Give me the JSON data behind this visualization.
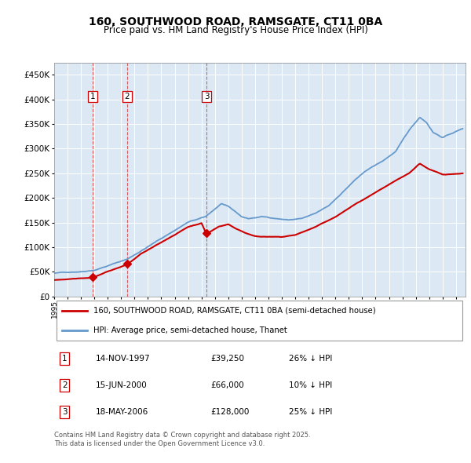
{
  "title": "160, SOUTHWOOD ROAD, RAMSGATE, CT11 0BA",
  "subtitle": "Price paid vs. HM Land Registry's House Price Index (HPI)",
  "legend_line1": "160, SOUTHWOOD ROAD, RAMSGATE, CT11 0BA (semi-detached house)",
  "legend_line2": "HPI: Average price, semi-detached house, Thanet",
  "footer": "Contains HM Land Registry data © Crown copyright and database right 2025.\nThis data is licensed under the Open Government Licence v3.0.",
  "transactions": [
    {
      "num": 1,
      "date": "14-NOV-1997",
      "price": 39250,
      "pct": "26%",
      "dir": "↓",
      "year_x": 1997.87
    },
    {
      "num": 2,
      "date": "15-JUN-2000",
      "price": 66000,
      "pct": "10%",
      "dir": "↓",
      "year_x": 2000.45
    },
    {
      "num": 3,
      "date": "18-MAY-2006",
      "price": 128000,
      "pct": "25%",
      "dir": "↓",
      "year_x": 2006.37
    }
  ],
  "red_color": "#cc0000",
  "blue_color": "#6699cc",
  "bg_color": "#dce9f5",
  "grid_color": "#ffffff",
  "vline_color": "#dd4444",
  "marker_color": "#cc0000",
  "ylim": [
    0,
    475000
  ],
  "yticks": [
    0,
    50000,
    100000,
    150000,
    200000,
    250000,
    300000,
    350000,
    400000,
    450000
  ],
  "xlim_start": 1995.0,
  "xlim_end": 2025.7
}
